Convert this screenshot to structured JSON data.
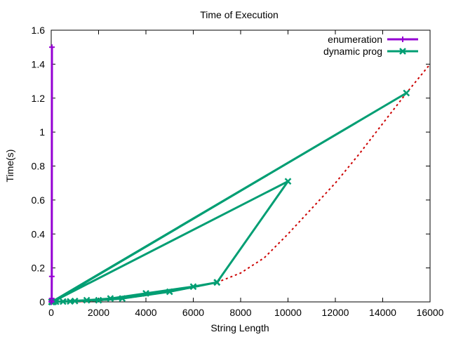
{
  "chart_data": {
    "type": "line",
    "title": "Time of Execution",
    "xlabel": "String Length",
    "ylabel": "Time(s)",
    "xlim": [
      0,
      16000
    ],
    "ylim": [
      0,
      1.6
    ],
    "xticks": [
      0,
      2000,
      4000,
      6000,
      8000,
      10000,
      12000,
      14000,
      16000
    ],
    "yticks": [
      0,
      0.2,
      0.4,
      0.6,
      0.8,
      1,
      1.2,
      1.4,
      1.6
    ],
    "xtick_labels": [
      "0",
      "2000",
      "4000",
      "6000",
      "8000",
      "10000",
      "12000",
      "14000",
      "16000"
    ],
    "ytick_labels": [
      "0",
      "0.2",
      "0.4",
      "0.6",
      "0.8",
      "1",
      "1.2",
      "1.4",
      "1.6"
    ],
    "grid": false,
    "legend_position": "top-right",
    "series": [
      {
        "name": "enumeration",
        "color": "#9400d3",
        "marker": "plus",
        "x": [
          5,
          10,
          15,
          20,
          25,
          30
        ],
        "y": [
          0.0,
          0.0,
          0.005,
          0.02,
          0.15,
          1.5
        ]
      },
      {
        "name": "dynamic prog",
        "color": "#009e73",
        "marker": "cross",
        "x": [
          10,
          50,
          100,
          200,
          500,
          800,
          1000,
          2000,
          3000,
          5000,
          7000,
          10000,
          50,
          15000,
          20,
          1500,
          2500,
          4000,
          6000,
          7000
        ],
        "y": [
          0.0,
          0.0,
          0.0,
          0.001,
          0.002,
          0.003,
          0.005,
          0.01,
          0.02,
          0.06,
          0.115,
          0.71,
          0.0,
          1.23,
          0.0,
          0.01,
          0.02,
          0.05,
          0.09,
          0.115
        ]
      },
      {
        "type": "fit",
        "color": "#cc0000",
        "dash": true,
        "x": [
          0,
          1000,
          2000,
          3000,
          4000,
          5000,
          6000,
          7000,
          8000,
          9000,
          10000,
          11000,
          12000,
          13000,
          14000,
          15000,
          16000
        ],
        "y": [
          0.0,
          0.001,
          0.006,
          0.019,
          0.038,
          0.06,
          0.085,
          0.115,
          0.17,
          0.26,
          0.4,
          0.55,
          0.7,
          0.87,
          1.05,
          1.23,
          1.4
        ]
      }
    ]
  }
}
